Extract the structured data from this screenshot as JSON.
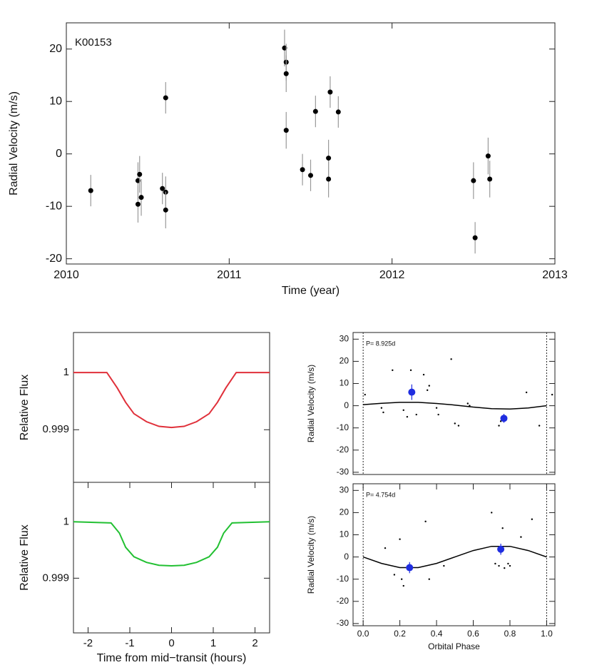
{
  "chart_data": [
    {
      "type": "scatter",
      "annotation": "K00153",
      "xlabel": "Time (year)",
      "ylabel": "Radial Velocity (m/s)",
      "xlim": [
        2010,
        2013
      ],
      "ylim": [
        -21,
        25
      ],
      "xticks": [
        2010,
        2011,
        2012,
        2013
      ],
      "yticks": [
        -20,
        -10,
        0,
        10,
        20
      ],
      "color": "#000000",
      "x": [
        2010.15,
        2010.44,
        2010.45,
        2010.44,
        2010.46,
        2010.59,
        2010.61,
        2010.61,
        2010.61,
        2011.34,
        2011.35,
        2011.35,
        2011.35,
        2011.45,
        2011.5,
        2011.53,
        2011.61,
        2011.61,
        2011.62,
        2011.67,
        2012.5,
        2012.51,
        2012.59,
        2012.6
      ],
      "values": [
        -7.0,
        -5.1,
        -3.9,
        -9.6,
        -8.3,
        -6.6,
        10.7,
        -7.3,
        -10.7,
        20.2,
        17.5,
        15.3,
        4.5,
        -3.0,
        -4.1,
        8.1,
        -0.8,
        -4.8,
        11.8,
        8.0,
        -5.1,
        -16.0,
        -0.4,
        -4.8
      ],
      "errors": [
        3.0,
        3.5,
        3.5,
        3.5,
        3.5,
        3.0,
        3.0,
        3.0,
        3.5,
        3.5,
        3.5,
        3.5,
        3.5,
        3.0,
        3.0,
        3.0,
        3.5,
        3.5,
        3.0,
        3.0,
        3.5,
        3.0,
        3.5,
        3.5
      ]
    },
    {
      "type": "line",
      "ylabel": "Relative Flux",
      "xlim": [
        -2.35,
        2.35
      ],
      "ylim": [
        0.99808,
        1.0007
      ],
      "yticks": [
        0.999,
        1
      ],
      "color": "#e0303a",
      "x": [
        -2.35,
        -1.55,
        -1.3,
        -1.1,
        -0.9,
        -0.6,
        -0.3,
        0,
        0.3,
        0.6,
        0.9,
        1.1,
        1.3,
        1.55,
        2.35
      ],
      "values": [
        1,
        1,
        0.99973,
        0.99948,
        0.99928,
        0.99914,
        0.99906,
        0.99904,
        0.99906,
        0.99914,
        0.99928,
        0.99948,
        0.99973,
        1,
        1
      ]
    },
    {
      "type": "line",
      "ylabel": "Relative Flux",
      "xlabel": "Time from mid−transit (hours)",
      "xlim": [
        -2.35,
        2.35
      ],
      "ylim": [
        0.99803,
        1.0007
      ],
      "xticks": [
        -2,
        -1,
        0,
        1,
        2
      ],
      "yticks": [
        0.999,
        1
      ],
      "color": "#22c032",
      "x": [
        -2.35,
        -1.45,
        -1.25,
        -1.1,
        -0.9,
        -0.6,
        -0.3,
        0,
        0.3,
        0.6,
        0.9,
        1.1,
        1.25,
        1.45,
        2.35
      ],
      "values": [
        1,
        0.99998,
        0.9998,
        0.99955,
        0.99938,
        0.99928,
        0.99923,
        0.99922,
        0.99923,
        0.99928,
        0.99938,
        0.99955,
        0.9998,
        0.99998,
        1
      ]
    },
    {
      "type": "phase",
      "annotation": "P= 8.925d",
      "ylabel": "Radial Velocity (m/s)",
      "xlim": [
        -0.055,
        1.045
      ],
      "ylim": [
        -31,
        33
      ],
      "yticks": [
        -30,
        -20,
        -10,
        0,
        10,
        20,
        30
      ],
      "vlines": [
        0,
        1
      ],
      "points": {
        "color": "#000000",
        "x": [
          0.01,
          0.1,
          0.11,
          0.16,
          0.22,
          0.24,
          0.26,
          0.29,
          0.33,
          0.35,
          0.36,
          0.4,
          0.41,
          0.48,
          0.5,
          0.52,
          0.57,
          0.58,
          0.74,
          0.75,
          0.77,
          0.89,
          0.96,
          1.03
        ],
        "values": [
          5,
          -1,
          -3,
          16,
          -2,
          -5,
          16,
          -4,
          14,
          7,
          9,
          -1,
          -4,
          21,
          -8,
          -9,
          1,
          0,
          -9,
          -7,
          -5,
          6,
          -9,
          5
        ]
      },
      "model": {
        "color": "#000000",
        "x": [
          0,
          0.1,
          0.2,
          0.3,
          0.4,
          0.5,
          0.6,
          0.7,
          0.8,
          0.9,
          1.0
        ],
        "values": [
          0.5,
          1.1,
          1.5,
          1.5,
          1.0,
          0.3,
          -0.6,
          -1.3,
          -1.5,
          -1.0,
          0
        ]
      },
      "binned": {
        "color": "#1f2de0",
        "x": [
          0.265,
          0.767
        ],
        "values": [
          6.1,
          -5.7
        ],
        "errors": [
          3.5,
          2.0
        ]
      }
    },
    {
      "type": "phase",
      "annotation": "P= 4.754d",
      "ylabel": "Radial Velocity (m/s)",
      "xlabel": "Orbital Phase",
      "xlim": [
        -0.055,
        1.045
      ],
      "ylim": [
        -31,
        33
      ],
      "xticks": [
        {
          "value": 0,
          "label": "0.0"
        },
        0.2,
        0.4,
        0.6,
        0.8,
        {
          "value": 1,
          "label": "1.0"
        }
      ],
      "yticks": [
        -30,
        -20,
        -10,
        0,
        10,
        20,
        30
      ],
      "vlines": [
        0,
        1
      ],
      "points": {
        "color": "#000000",
        "x": [
          0.12,
          0.17,
          0.2,
          0.21,
          0.22,
          0.34,
          0.36,
          0.44,
          0.7,
          0.72,
          0.74,
          0.76,
          0.77,
          0.79,
          0.8,
          0.86,
          0.92
        ],
        "values": [
          4,
          -8,
          8,
          -10,
          -13,
          16,
          -10,
          -4,
          20,
          -3,
          -4,
          13,
          -5,
          -3,
          -4,
          9,
          17
        ]
      },
      "model": {
        "color": "#000000",
        "x": [
          0,
          0.1,
          0.2,
          0.3,
          0.4,
          0.5,
          0.6,
          0.7,
          0.8,
          0.9,
          1.0
        ],
        "values": [
          0,
          -2.9,
          -4.8,
          -4.8,
          -2.9,
          0,
          2.9,
          4.8,
          4.8,
          2.9,
          0
        ]
      },
      "binned": {
        "color": "#1f2de0",
        "x": [
          0.253,
          0.75
        ],
        "values": [
          -4.8,
          3.5
        ],
        "errors": [
          2.5,
          2.5
        ]
      }
    }
  ]
}
